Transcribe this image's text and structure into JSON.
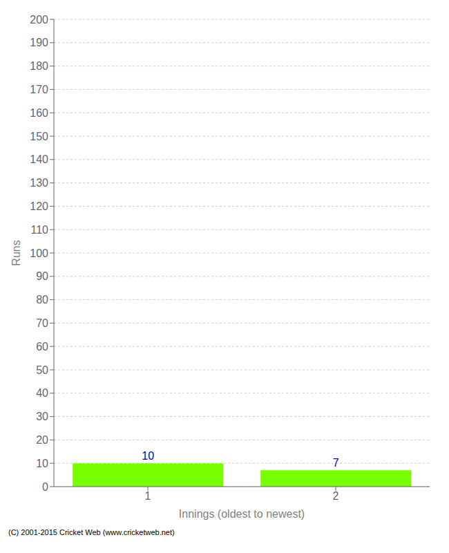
{
  "chart_data": {
    "type": "bar",
    "categories": [
      "1",
      "2"
    ],
    "values": [
      10,
      7
    ],
    "color": "#77ff00",
    "xlabel": "Innings (oldest to newest)",
    "ylabel": "Runs",
    "ylim": [
      0,
      200
    ],
    "yticks": [
      0,
      10,
      20,
      30,
      40,
      50,
      60,
      70,
      80,
      90,
      100,
      110,
      120,
      130,
      140,
      150,
      160,
      170,
      180,
      190,
      200
    ],
    "grid": true,
    "data_labels": true,
    "annotations": [
      "(C) 2001-2015 Cricket Web (www.cricketweb.net)"
    ]
  }
}
